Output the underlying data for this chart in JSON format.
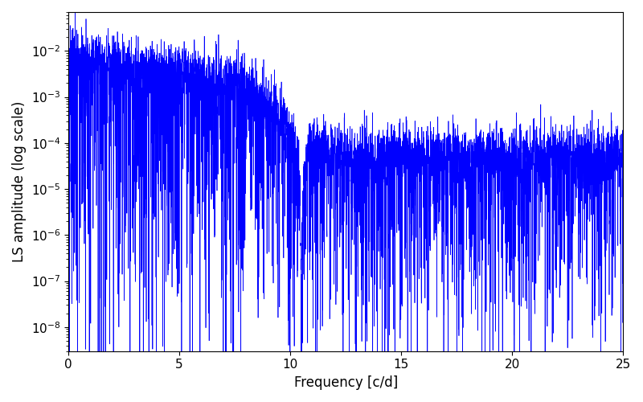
{
  "xlabel": "Frequency [c/d]",
  "ylabel": "LS amplitude (log scale)",
  "xlim": [
    0,
    25
  ],
  "ylim": [
    3e-09,
    0.07
  ],
  "line_color": "#0000ff",
  "background_color": "#ffffff",
  "xlabel_fontsize": 12,
  "ylabel_fontsize": 12,
  "tick_fontsize": 11,
  "seed": 42,
  "n_points": 5000,
  "freq_max": 25.0
}
